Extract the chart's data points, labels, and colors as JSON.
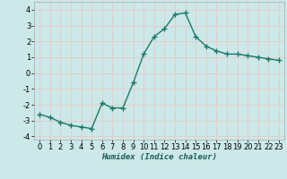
{
  "x": [
    0,
    1,
    2,
    3,
    4,
    5,
    6,
    7,
    8,
    9,
    10,
    11,
    12,
    13,
    14,
    15,
    16,
    17,
    18,
    19,
    20,
    21,
    22,
    23
  ],
  "y": [
    -2.6,
    -2.8,
    -3.1,
    -3.3,
    -3.4,
    -3.5,
    -1.9,
    -2.2,
    -2.2,
    -0.6,
    1.2,
    2.3,
    2.8,
    3.7,
    3.8,
    2.3,
    1.7,
    1.4,
    1.2,
    1.2,
    1.1,
    1.0,
    0.9,
    0.8
  ],
  "line_color": "#1a7a6a",
  "marker": "+",
  "markersize": 4,
  "linewidth": 1.0,
  "markeredgewidth": 1.0,
  "xlabel": "Humidex (Indice chaleur)",
  "xlim": [
    -0.5,
    23.5
  ],
  "ylim": [
    -4.2,
    4.5
  ],
  "yticks": [
    -4,
    -3,
    -2,
    -1,
    0,
    1,
    2,
    3,
    4
  ],
  "xticks": [
    0,
    1,
    2,
    3,
    4,
    5,
    6,
    7,
    8,
    9,
    10,
    11,
    12,
    13,
    14,
    15,
    16,
    17,
    18,
    19,
    20,
    21,
    22,
    23
  ],
  "bg_color": "#cce8e8",
  "grid_color": "#e8c8c8",
  "label_fontsize": 6.5,
  "tick_fontsize": 6
}
